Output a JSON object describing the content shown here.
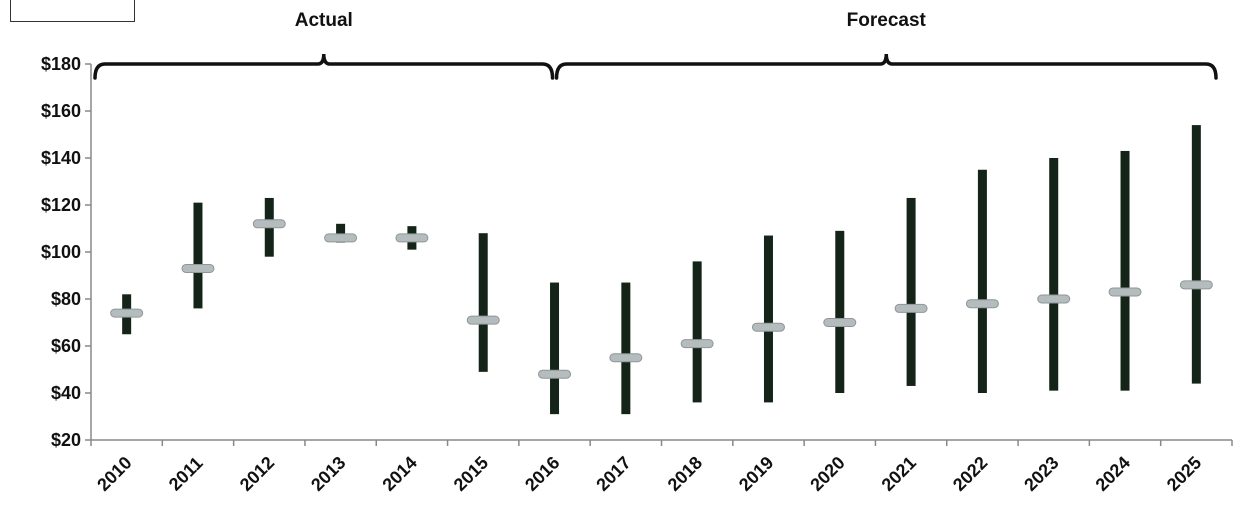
{
  "chart_data": {
    "type": "range",
    "title": "",
    "xlabel": "",
    "ylabel": "",
    "ylim": [
      20,
      180
    ],
    "yticks": [
      20,
      40,
      60,
      80,
      100,
      120,
      140,
      160,
      180
    ],
    "ytick_labels": [
      "$20",
      "$40",
      "$60",
      "$80",
      "$100",
      "$120",
      "$140",
      "$160",
      "$180"
    ],
    "categories": [
      "2010",
      "2011",
      "2012",
      "2013",
      "2014",
      "2015",
      "2016",
      "2017",
      "2018",
      "2019",
      "2020",
      "2021",
      "2022",
      "2023",
      "2024",
      "2025"
    ],
    "series": [
      {
        "name": "",
        "kind": "range-bar",
        "low": [
          65,
          76,
          98,
          104,
          101,
          49,
          31,
          31,
          36,
          36,
          40,
          43,
          40,
          41,
          41,
          44
        ],
        "high": [
          82,
          121,
          123,
          112,
          111,
          108,
          87,
          87,
          96,
          107,
          109,
          123,
          135,
          140,
          143,
          154
        ]
      },
      {
        "name": "",
        "kind": "marker",
        "values": [
          74,
          93,
          112,
          106,
          106,
          71,
          48,
          55,
          61,
          68,
          70,
          76,
          78,
          80,
          83,
          86
        ]
      }
    ],
    "annotations": [
      {
        "text": "Actual",
        "from": "2010",
        "to": "2016"
      },
      {
        "text": "Forecast",
        "from": "2016",
        "to": "2025"
      }
    ],
    "grid": false,
    "legend": "top-left",
    "colors": {
      "bar": "#142418",
      "marker": "#b5bcbd",
      "axis": "#888888",
      "text": "#111111"
    }
  }
}
